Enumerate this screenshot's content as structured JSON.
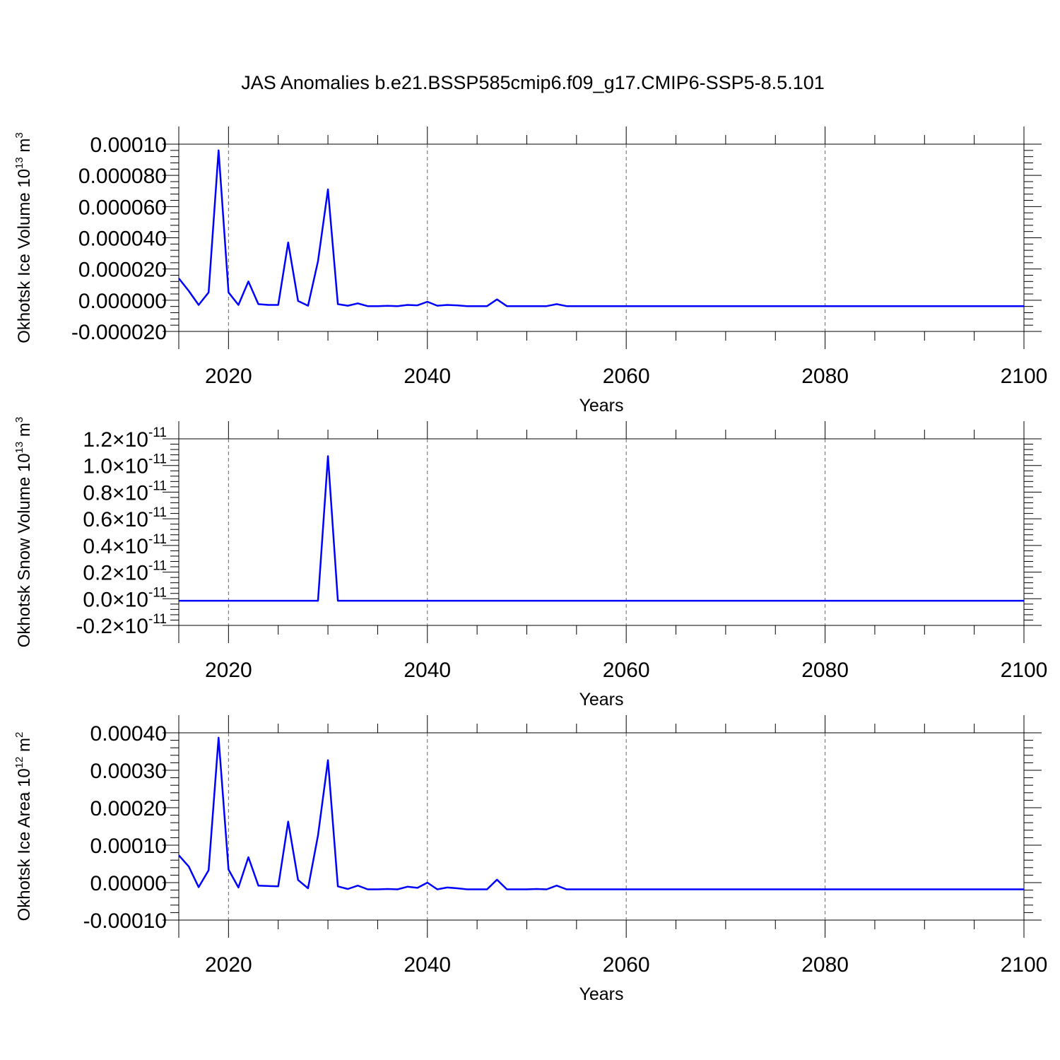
{
  "title": "JAS Anomalies b.e21.BSSP585cmip6.f09_g17.CMIP6-SSP5-8.5.101",
  "line_color": "#0000ff",
  "chart_data": [
    {
      "type": "line",
      "xlabel": "Years",
      "ylabel": "Okhotsk Ice Volume 10^13 m^3",
      "ylabel_parts": {
        "base": "Okhotsk Ice Volume 10",
        "exp1": "13",
        "mid": " m",
        "exp2": "3"
      },
      "xlim": [
        2015,
        2100
      ],
      "ylim": [
        -2e-05,
        0.0001
      ],
      "xticks": [
        2020,
        2040,
        2060,
        2080,
        2100
      ],
      "yticks": [
        -2e-05,
        0.0,
        2e-05,
        4e-05,
        6e-05,
        8e-05,
        0.0001
      ],
      "ytick_labels": [
        "-0.000020",
        "0.000000",
        "0.000020",
        "0.000040",
        "0.000060",
        "0.000080",
        "0.00010"
      ],
      "grid": "vertical-dashed",
      "series": [
        {
          "x": [
            2015,
            2016,
            2017,
            2018,
            2019,
            2020,
            2021,
            2022,
            2023,
            2024,
            2025,
            2026,
            2027,
            2028,
            2029,
            2030,
            2031,
            2032,
            2033,
            2034,
            2035,
            2036,
            2037,
            2038,
            2039,
            2040,
            2041,
            2042,
            2043,
            2044,
            2045,
            2046,
            2047,
            2048,
            2049,
            2050,
            2051,
            2052,
            2053,
            2054,
            2055,
            2100
          ],
          "y": [
            1.4e-05,
            6e-06,
            -3e-06,
            5e-06,
            9.6e-05,
            5e-06,
            -3e-06,
            1.2e-05,
            -2.5e-06,
            -3e-06,
            -3e-06,
            3.7e-05,
            -5e-07,
            -3.5e-06,
            2.5e-05,
            7.1e-05,
            -2.5e-06,
            -3.5e-06,
            -2e-06,
            -3.8e-06,
            -3.8e-06,
            -3.6e-06,
            -3.8e-06,
            -3e-06,
            -3.3e-06,
            -1e-06,
            -3.5e-06,
            -3e-06,
            -3.3e-06,
            -3.8e-06,
            -3.8e-06,
            -3.8e-06,
            5e-07,
            -3.8e-06,
            -3.8e-06,
            -3.8e-06,
            -3.8e-06,
            -3.8e-06,
            -2.5e-06,
            -3.8e-06,
            -3.8e-06,
            -3.8e-06
          ]
        }
      ]
    },
    {
      "type": "line",
      "xlabel": "Years",
      "ylabel": "Okhotsk Snow Volume 10^13 m^3",
      "ylabel_parts": {
        "base": "Okhotsk Snow Volume 10",
        "exp1": "13",
        "mid": " m",
        "exp2": "3"
      },
      "xlim": [
        2015,
        2100
      ],
      "ylim": [
        -2e-12,
        1.2e-11
      ],
      "xticks": [
        2020,
        2040,
        2060,
        2080,
        2100
      ],
      "yticks": [
        -2e-12,
        0,
        2e-12,
        4e-12,
        6e-12,
        8e-12,
        1e-11,
        1.2e-11
      ],
      "ytick_labels": [
        "-0.2",
        "0.0",
        "0.2",
        "0.4",
        "0.6",
        "0.8",
        "1.0",
        "1.2"
      ],
      "ytick_suffix": "×10",
      "ytick_exponent": "-11",
      "grid": "vertical-dashed",
      "series": [
        {
          "x": [
            2015,
            2029,
            2030,
            2031,
            2100
          ],
          "y": [
            -1.5e-13,
            -1.5e-13,
            1.07e-11,
            -1.5e-13,
            -1.5e-13
          ]
        }
      ]
    },
    {
      "type": "line",
      "xlabel": "Years",
      "ylabel": "Okhotsk Ice Area 10^12 m^2",
      "ylabel_parts": {
        "base": "Okhotsk Ice Area 10",
        "exp1": "12",
        "mid": " m",
        "exp2": "2"
      },
      "xlim": [
        2015,
        2100
      ],
      "ylim": [
        -0.0001,
        0.0004
      ],
      "xticks": [
        2020,
        2040,
        2060,
        2080,
        2100
      ],
      "yticks": [
        -0.0001,
        0.0,
        0.0001,
        0.0002,
        0.0003,
        0.0004
      ],
      "ytick_labels": [
        "-0.00010",
        "0.00000",
        "0.00010",
        "0.00020",
        "0.00030",
        "0.00040"
      ],
      "grid": "vertical-dashed",
      "series": [
        {
          "x": [
            2015,
            2016,
            2017,
            2018,
            2019,
            2020,
            2021,
            2022,
            2023,
            2024,
            2025,
            2026,
            2027,
            2028,
            2029,
            2030,
            2031,
            2032,
            2033,
            2034,
            2035,
            2036,
            2037,
            2038,
            2039,
            2040,
            2041,
            2042,
            2043,
            2044,
            2045,
            2046,
            2047,
            2048,
            2049,
            2050,
            2051,
            2052,
            2053,
            2054,
            2055,
            2100
          ],
          "y": [
            7.3e-05,
            4.3e-05,
            -1.2e-05,
            3.3e-05,
            0.000387,
            3.5e-05,
            -1.3e-05,
            6.8e-05,
            -8e-06,
            -9e-06,
            -1e-05,
            0.000163,
            7e-06,
            -1.5e-05,
            0.000126,
            0.000327,
            -1e-05,
            -1.7e-05,
            -8e-06,
            -1.8e-05,
            -1.8e-05,
            -1.7e-05,
            -1.8e-05,
            -1.1e-05,
            -1.4e-05,
            0.0,
            -1.8e-05,
            -1.3e-05,
            -1.5e-05,
            -1.8e-05,
            -1.8e-05,
            -1.8e-05,
            8e-06,
            -1.8e-05,
            -1.8e-05,
            -1.8e-05,
            -1.7e-05,
            -1.8e-05,
            -8e-06,
            -1.8e-05,
            -1.8e-05,
            -1.8e-05
          ]
        }
      ]
    }
  ]
}
